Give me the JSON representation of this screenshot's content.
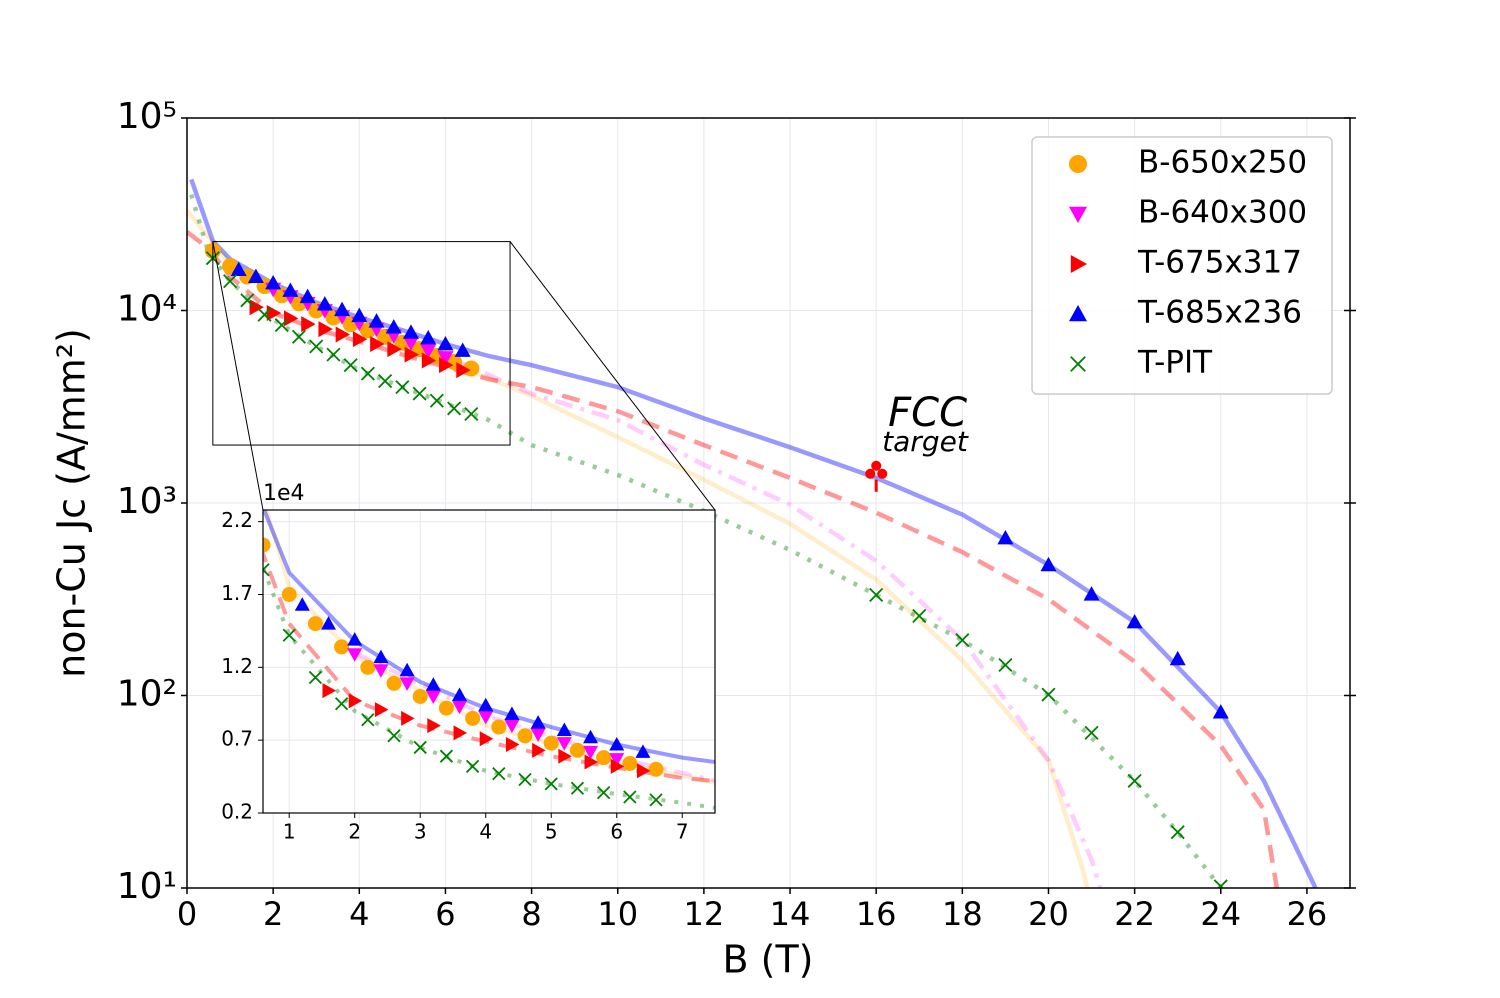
{
  "chart_data": {
    "type": "scatter",
    "x_label": "B (T)",
    "y_label": "non-Cu Jc (A/mm²)",
    "xlim": [
      0,
      27
    ],
    "ylim": [
      10,
      100000
    ],
    "log_y": true,
    "grid": true,
    "legend": "upper right",
    "xticks": [
      0,
      2,
      4,
      6,
      8,
      10,
      12,
      14,
      16,
      18,
      20,
      22,
      24,
      26
    ],
    "yticks": [
      {
        "value": 10,
        "label": "10¹"
      },
      {
        "value": 100,
        "label": "10²"
      },
      {
        "value": 1000,
        "label": "10³"
      },
      {
        "value": 10000,
        "label": "10⁴"
      },
      {
        "value": 100000,
        "label": "10⁵"
      }
    ],
    "series": [
      {
        "name": "B-650x250",
        "color": "#ffa500",
        "marker": "circle",
        "x": [
          0.6,
          1.0,
          1.4,
          1.8,
          2.2,
          2.6,
          3.0,
          3.4,
          3.8,
          4.2,
          4.6,
          5.0,
          5.4,
          5.8,
          6.2,
          6.6
        ],
        "values": [
          20400,
          17000,
          15000,
          13400,
          12000,
          10900,
          10000,
          9200,
          8500,
          7900,
          7300,
          6800,
          6300,
          5800,
          5400,
          5000
        ],
        "fit": {
          "style": "solid",
          "opacity": 0.2,
          "x": [
            0,
            1,
            2,
            4,
            6,
            8,
            10,
            12,
            14,
            16,
            18,
            20,
            20.8,
            20.9
          ],
          "values": [
            33000,
            17500,
            12800,
            8000,
            5500,
            3600,
            2200,
            1320,
            780,
            400,
            152,
            46,
            12.4,
            10
          ]
        }
      },
      {
        "name": "B-640x300",
        "color": "#ff00ff",
        "marker": "triangle-down",
        "x": [
          2.0,
          2.4,
          2.8,
          3.2,
          3.6,
          4.0,
          4.4,
          4.8,
          5.2,
          5.6,
          6.0
        ],
        "values": [
          12900,
          11800,
          10900,
          10000,
          9300,
          8600,
          8000,
          7400,
          6800,
          6200,
          5700
        ],
        "fit": {
          "style": "dashdot",
          "opacity": 0.2,
          "x": [
            2,
            4,
            6,
            8,
            10,
            12,
            14,
            16,
            18,
            20,
            21,
            21.2
          ],
          "values": [
            13000,
            8700,
            5800,
            3700,
            2700,
            1580,
            980,
            500,
            195,
            46,
            14,
            10
          ]
        }
      },
      {
        "name": "T-675x317",
        "color": "#ff0000",
        "marker": "triangle-right",
        "x": [
          1.6,
          2.0,
          2.4,
          2.8,
          3.2,
          3.6,
          4.0,
          4.4,
          4.8,
          5.2,
          5.6,
          6.0,
          6.4
        ],
        "values": [
          10400,
          9700,
          9100,
          8500,
          8000,
          7500,
          7100,
          6700,
          6300,
          5900,
          5500,
          5200,
          4900
        ],
        "fit": {
          "style": "dashed",
          "opacity": 0.4,
          "x": [
            0,
            0.5,
            1,
            2,
            3,
            4,
            5,
            6,
            7,
            8,
            10,
            12,
            14,
            16,
            18,
            20,
            22,
            24,
            25,
            25.3
          ],
          "values": [
            25600,
            21000,
            15000,
            9700,
            8000,
            6900,
            5900,
            5100,
            4400,
            4000,
            3000,
            2000,
            1350,
            890,
            556,
            316,
            150,
            55,
            25.5,
            10
          ]
        }
      },
      {
        "name": "T-685x236",
        "color": "#0000ff",
        "marker": "triangle-up",
        "x": [
          1.2,
          1.6,
          2.0,
          2.4,
          2.8,
          3.2,
          3.6,
          4.0,
          4.4,
          4.8,
          5.2,
          5.6,
          6.0,
          6.4,
          19,
          20,
          21,
          22,
          23,
          24
        ],
        "values": [
          16300,
          15000,
          13900,
          12700,
          11800,
          10800,
          10100,
          9400,
          8800,
          8200,
          7700,
          7200,
          6700,
          6200,
          658,
          477,
          336,
          241,
          155,
          82
        ],
        "fit": {
          "style": "solid",
          "opacity": 0.4,
          "x": [
            0.1,
            0.6,
            1,
            2,
            3,
            4,
            5,
            6,
            7,
            8,
            10,
            12,
            14,
            16,
            18,
            20,
            22,
            24,
            25,
            26,
            26.2
          ],
          "values": [
            48000,
            23000,
            18500,
            13800,
            11000,
            9200,
            7900,
            6700,
            5800,
            5200,
            4000,
            2750,
            1950,
            1350,
            870,
            477,
            241,
            82,
            36,
            12.4,
            10
          ]
        }
      },
      {
        "name": "T-PIT",
        "color": "#008000",
        "marker": "x",
        "x": [
          0.6,
          1.0,
          1.4,
          1.8,
          2.2,
          2.6,
          3.0,
          3.4,
          3.8,
          4.2,
          4.6,
          5.0,
          5.4,
          5.8,
          6.2,
          6.6,
          16,
          17,
          18,
          19,
          20,
          21,
          22,
          23,
          24
        ],
        "values": [
          18700,
          14200,
          11300,
          9500,
          8400,
          7300,
          6500,
          5900,
          5200,
          4700,
          4300,
          4000,
          3700,
          3400,
          3100,
          2900,
          333,
          259,
          194,
          144,
          101,
          64,
          36,
          19.5,
          10.2
        ],
        "fit": {
          "style": "dotted",
          "opacity": 0.4,
          "x": [
            0.1,
            0.5,
            1,
            2,
            3,
            4,
            5,
            6,
            7,
            8,
            10,
            12,
            14,
            16,
            18,
            20,
            22,
            23,
            24
          ],
          "values": [
            40000,
            20000,
            14200,
            9000,
            6500,
            4900,
            4000,
            3300,
            2700,
            2000,
            1400,
            910,
            570,
            333,
            194,
            101,
            36,
            19.5,
            10
          ]
        }
      }
    ],
    "annotation": {
      "text": "FCC",
      "subtext": "target",
      "x": 16,
      "y": 1320,
      "color": "#ff0000"
    },
    "inset": {
      "xlim": [
        0.6,
        7.5
      ],
      "ylim": [
        2000,
        22800
      ],
      "xticks": [
        1,
        2,
        3,
        4,
        5,
        6,
        7
      ],
      "yticks": [
        {
          "value": 2000,
          "label": "0.2"
        },
        {
          "value": 7000,
          "label": "0.7"
        },
        {
          "value": 12000,
          "label": "1.2"
        },
        {
          "value": 17000,
          "label": "1.7"
        },
        {
          "value": 22000,
          "label": "2.2"
        }
      ],
      "offset_label": "1e4"
    }
  }
}
